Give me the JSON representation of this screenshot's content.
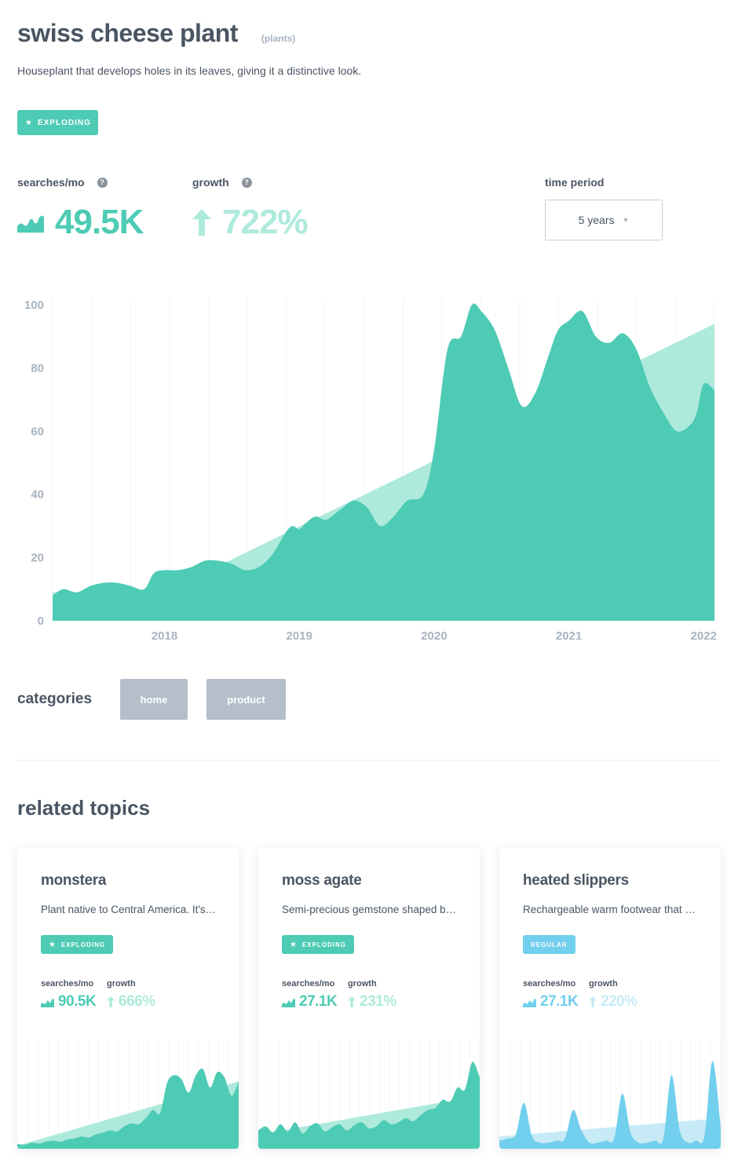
{
  "topic": {
    "title": "swiss cheese plant",
    "tag": "(plants)",
    "description": "Houseplant that develops holes in its leaves, giving it a distinctive look.",
    "status": "EXPLODING"
  },
  "metrics": {
    "searches_label": "searches/mo",
    "searches_value": "49.5K",
    "growth_label": "growth",
    "growth_value": "722%",
    "help_glyph": "?"
  },
  "time_period": {
    "label": "time period",
    "selected": "5 years"
  },
  "colors": {
    "accent": "#4ecbb4",
    "trend": "#aeeadc",
    "regular": "#72cfed",
    "regular_trend": "#c7ebf6",
    "axis_text": "#a9b4c0"
  },
  "chart_data": {
    "type": "area",
    "ylim": [
      0,
      100
    ],
    "y_ticks": [
      0,
      20,
      40,
      60,
      80,
      100
    ],
    "x_tick_labels": [
      "2018",
      "2019",
      "2020",
      "2021",
      "2022"
    ],
    "x_tick_positions": [
      2018,
      2019,
      2020,
      2021,
      2022
    ],
    "xlim": [
      2017.17,
      2022.08
    ],
    "series": [
      {
        "x": [
          2017.17,
          2017.25,
          2017.35,
          2017.45,
          2017.55,
          2017.65,
          2017.75,
          2017.85,
          2017.92,
          2018.0,
          2018.1,
          2018.2,
          2018.3,
          2018.4,
          2018.5,
          2018.6,
          2018.7,
          2018.8,
          2018.9,
          2018.95,
          2019.0,
          2019.05,
          2019.12,
          2019.2,
          2019.3,
          2019.4,
          2019.5,
          2019.6,
          2019.7,
          2019.8,
          2019.92,
          2020.0,
          2020.1,
          2020.2,
          2020.28,
          2020.35,
          2020.45,
          2020.55,
          2020.65,
          2020.75,
          2020.85,
          2020.92,
          2021.0,
          2021.1,
          2021.2,
          2021.3,
          2021.4,
          2021.5,
          2021.6,
          2021.7,
          2021.8,
          2021.9,
          2021.95,
          2022.0,
          2022.08
        ],
        "values": [
          8,
          10,
          9,
          11,
          12,
          12,
          11,
          10,
          15,
          16,
          16,
          17,
          19,
          19,
          18,
          16,
          17,
          21,
          28,
          30,
          29,
          31,
          33,
          32,
          35,
          38,
          36,
          30,
          33,
          38,
          40,
          54,
          86,
          90,
          100,
          98,
          92,
          80,
          68,
          72,
          84,
          92,
          95,
          98,
          90,
          88,
          91,
          86,
          74,
          66,
          60,
          62,
          66,
          75,
          73
        ]
      },
      {
        "x": [
          2017.17,
          2018.0,
          2022.08
        ],
        "values": [
          9,
          9,
          94
        ]
      }
    ]
  },
  "categories": {
    "title": "categories",
    "items": [
      "home",
      "product"
    ]
  },
  "related": {
    "title": "related topics",
    "labels": {
      "searches": "searches/mo",
      "growth": "growth"
    },
    "cards": [
      {
        "title": "monstera",
        "description": "Plant native to Central America. It's known for its large split leaves.",
        "status": "EXPLODING",
        "searches": "90.5K",
        "growth": "666%",
        "values": [
          5,
          4,
          6,
          5,
          7,
          8,
          7,
          9,
          10,
          12,
          11,
          14,
          16,
          18,
          17,
          22,
          25,
          24,
          30,
          38,
          35,
          65,
          72,
          68,
          55,
          72,
          78,
          60,
          75,
          70,
          52,
          66
        ],
        "trend": [
          3,
          66
        ]
      },
      {
        "title": "moss agate",
        "description": "Semi-precious gemstone shaped by moss-like mineral patterns.",
        "status": "EXPLODING",
        "searches": "27.1K",
        "growth": "231%",
        "values": [
          18,
          22,
          16,
          24,
          17,
          26,
          15,
          22,
          25,
          17,
          21,
          24,
          18,
          23,
          26,
          20,
          22,
          28,
          24,
          26,
          30,
          27,
          33,
          38,
          40,
          48,
          46,
          60,
          58,
          85,
          70
        ],
        "trend": [
          14,
          52
        ]
      },
      {
        "title": "heated slippers",
        "description": "Rechargeable warm footwear that keeps feet toasty in cold weather.",
        "status": "REGULAR",
        "searches": "27.1K",
        "growth": "220%",
        "values": [
          8,
          10,
          14,
          45,
          12,
          6,
          6,
          8,
          10,
          38,
          18,
          6,
          6,
          8,
          10,
          54,
          16,
          6,
          6,
          8,
          10,
          72,
          18,
          6,
          8,
          12,
          86,
          20
        ],
        "trend": [
          12,
          30
        ]
      }
    ]
  }
}
